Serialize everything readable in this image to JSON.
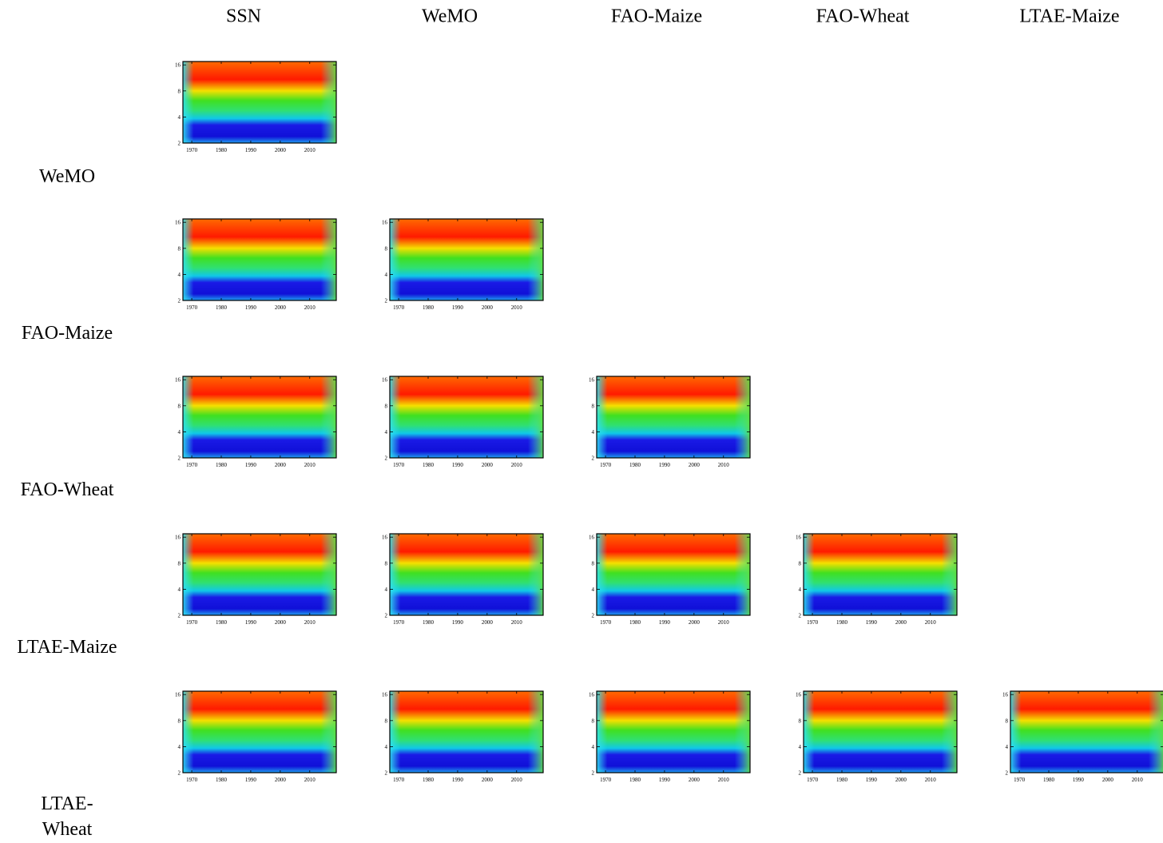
{
  "columns": [
    "SSN",
    "WeMO",
    "FAO-Maize",
    "FAO-Wheat",
    "LTAE-Maize"
  ],
  "rows": [
    "WeMO",
    "FAO-Maize",
    "FAO-Wheat",
    "LTAE-Maize",
    "LTAE-Wheat"
  ],
  "chart_data": [
    {
      "type": "heatmap",
      "xlim": [
        1967,
        2019
      ],
      "xticks": [
        1970,
        1980,
        1990,
        2000,
        2010
      ],
      "ylim": [
        2,
        17.5
      ],
      "yticks": [
        2,
        4,
        8,
        16
      ],
      "log_y": true
    },
    {
      "type": "heatmap",
      "xlim": [
        1967,
        2019
      ],
      "xticks": [
        1970,
        1980,
        1990,
        2000,
        2010
      ],
      "ylim": [
        2,
        17.5
      ],
      "yticks": [
        2,
        4,
        8,
        16
      ],
      "log_y": true
    },
    {
      "type": "heatmap",
      "xlim": [
        1967,
        2019
      ],
      "xticks": [
        1970,
        1980,
        1990,
        2000,
        2010
      ],
      "ylim": [
        2,
        17.5
      ],
      "yticks": [
        2,
        4,
        8,
        16
      ],
      "log_y": true
    },
    {
      "type": "heatmap",
      "xlim": [
        1967,
        2019
      ],
      "xticks": [
        1970,
        1980,
        1990,
        2000,
        2010
      ],
      "ylim": [
        2,
        17.5
      ],
      "yticks": [
        2,
        4,
        8,
        16
      ],
      "log_y": true
    },
    {
      "type": "heatmap",
      "xlim": [
        1967,
        2019
      ],
      "xticks": [
        1970,
        1980,
        1990,
        2000,
        2010
      ],
      "ylim": [
        2,
        17.5
      ],
      "yticks": [
        2,
        4,
        8,
        16
      ],
      "log_y": true
    },
    {
      "type": "heatmap",
      "xlim": [
        1967,
        2019
      ],
      "xticks": [
        1970,
        1980,
        1990,
        2000,
        2010
      ],
      "ylim": [
        2,
        17.5
      ],
      "yticks": [
        2,
        4,
        8,
        16
      ],
      "log_y": true
    },
    {
      "type": "heatmap",
      "xlim": [
        1967,
        2019
      ],
      "xticks": [
        1970,
        1980,
        1990,
        2000,
        2010
      ],
      "ylim": [
        2,
        17.5
      ],
      "yticks": [
        2,
        4,
        8,
        16
      ],
      "log_y": true
    },
    {
      "type": "heatmap",
      "xlim": [
        1967,
        2019
      ],
      "xticks": [
        1970,
        1980,
        1990,
        2000,
        2010
      ],
      "ylim": [
        2,
        17.5
      ],
      "yticks": [
        2,
        4,
        8,
        16
      ],
      "log_y": true
    },
    {
      "type": "heatmap",
      "xlim": [
        1967,
        2019
      ],
      "xticks": [
        1970,
        1980,
        1990,
        2000,
        2010
      ],
      "ylim": [
        2,
        17.5
      ],
      "yticks": [
        2,
        4,
        8,
        16
      ],
      "log_y": true
    },
    {
      "type": "heatmap",
      "xlim": [
        1967,
        2019
      ],
      "xticks": [
        1970,
        1980,
        1990,
        2000,
        2010
      ],
      "ylim": [
        2,
        17.5
      ],
      "yticks": [
        2,
        4,
        8,
        16
      ],
      "log_y": true
    },
    {
      "type": "heatmap",
      "xlim": [
        1967,
        2019
      ],
      "xticks": [
        1970,
        1980,
        1990,
        2000,
        2010
      ],
      "ylim": [
        2,
        17.5
      ],
      "yticks": [
        2,
        4,
        8,
        16
      ],
      "log_y": true
    },
    {
      "type": "heatmap",
      "xlim": [
        1967,
        2019
      ],
      "xticks": [
        1970,
        1980,
        1990,
        2000,
        2010
      ],
      "ylim": [
        2,
        17.5
      ],
      "yticks": [
        2,
        4,
        8,
        16
      ],
      "log_y": true
    },
    {
      "type": "heatmap",
      "xlim": [
        1967,
        2019
      ],
      "xticks": [
        1970,
        1980,
        1990,
        2000,
        2010
      ],
      "ylim": [
        2,
        17.5
      ],
      "yticks": [
        2,
        4,
        8,
        16
      ],
      "log_y": true
    },
    {
      "type": "heatmap",
      "xlim": [
        1967,
        2019
      ],
      "xticks": [
        1970,
        1980,
        1990,
        2000,
        2010
      ],
      "ylim": [
        2,
        17.5
      ],
      "yticks": [
        2,
        4,
        8,
        16
      ],
      "log_y": true
    },
    {
      "type": "heatmap",
      "xlim": [
        1967,
        2019
      ],
      "xticks": [
        1970,
        1980,
        1990,
        2000,
        2010
      ],
      "ylim": [
        2,
        17.5
      ],
      "yticks": [
        2,
        4,
        8,
        16
      ],
      "log_y": true
    }
  ]
}
